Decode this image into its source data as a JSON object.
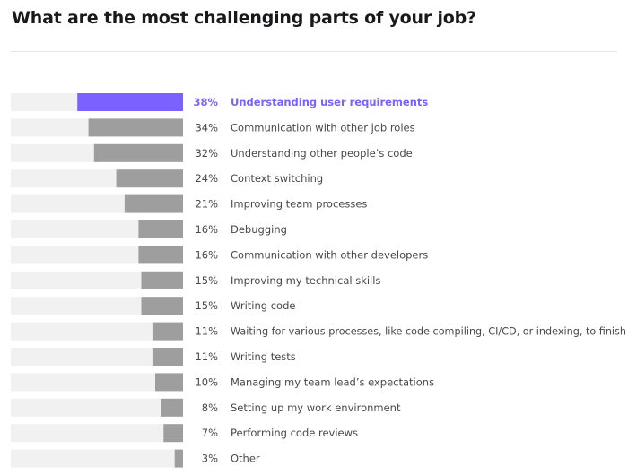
{
  "chart_data": {
    "type": "bar",
    "orientation": "horizontal",
    "title": "What are the most challenging parts of your job?",
    "value_format": "percent",
    "xlim": [
      0,
      100
    ],
    "highlight_index": 0,
    "colors": {
      "highlight": "#7b61ff",
      "bar": "#9e9e9e",
      "track": "#f1f1f2"
    },
    "categories": [
      "Understanding user requirements",
      "Communication with other job roles",
      "Understanding other people’s code",
      "Context switching",
      "Improving team processes",
      "Debugging",
      "Communication with other developers",
      "Improving my technical skills",
      "Writing code",
      "Waiting for various processes, like code compiling, CI/CD, or indexing, to finish",
      "Writing tests",
      "Managing my team lead’s expectations",
      "Setting up my work environment",
      "Performing code reviews",
      "Other"
    ],
    "values": [
      38,
      34,
      32,
      24,
      21,
      16,
      16,
      15,
      15,
      11,
      11,
      10,
      8,
      7,
      3
    ],
    "value_labels": [
      "38%",
      "34%",
      "32%",
      "24%",
      "21%",
      "16%",
      "16%",
      "15%",
      "15%",
      "11%",
      "11%",
      "10%",
      "8%",
      "7%",
      "3%"
    ]
  }
}
